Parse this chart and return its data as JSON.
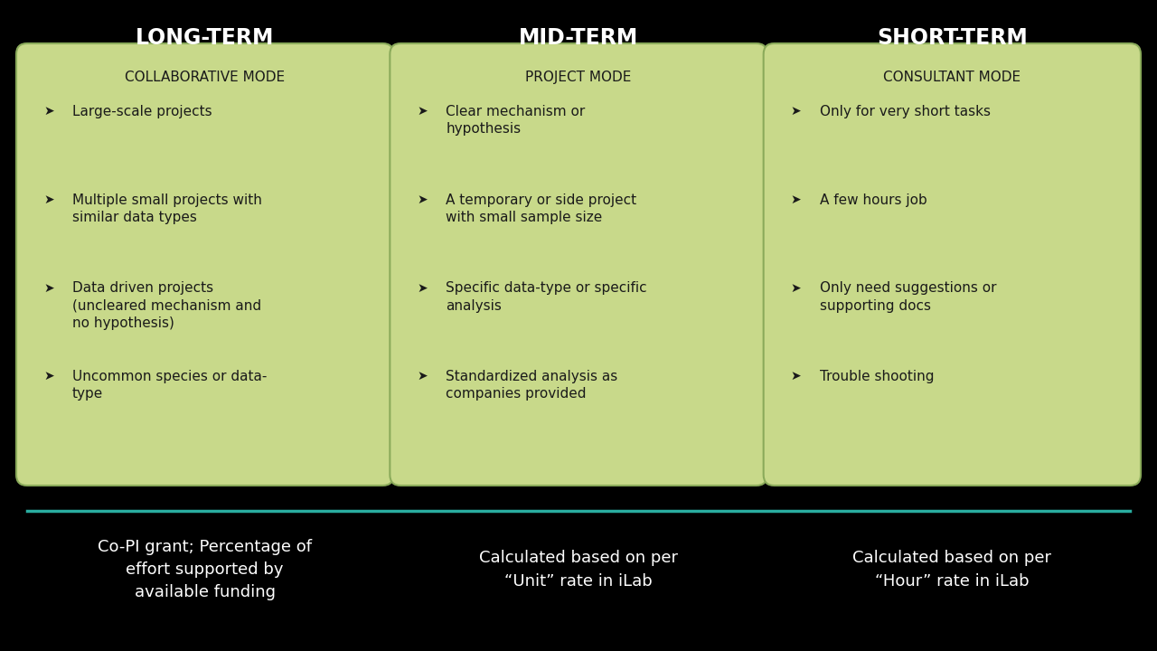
{
  "background_color": "#000000",
  "box_color": "#c8d98a",
  "box_border_color": "#8aaa5a",
  "teal_line_color": "#2aada0",
  "header_text_color": "#ffffff",
  "box_text_color": "#1a1a1a",
  "footer_text_color": "#ffffff",
  "columns": [
    {
      "header": "LONG-TERM",
      "mode": "COLLABORATIVE MODE",
      "bullets": [
        "Large-scale projects",
        "Multiple small projects with\nsimilar data types",
        "Data driven projects\n(uncleared mechanism and\nno hypothesis)",
        "Uncommon species or data-\ntype"
      ],
      "footer": "Co-PI grant; Percentage of\neffort supported by\navailable funding"
    },
    {
      "header": "MID-TERM",
      "mode": "PROJECT MODE",
      "bullets": [
        "Clear mechanism or\nhypothesis",
        "A temporary or side project\nwith small sample size",
        "Specific data-type or specific\nanalysis",
        "Standardized analysis as\ncompanies provided"
      ],
      "footer": "Calculated based on per\n“Unit” rate in iLab"
    },
    {
      "header": "SHORT-TERM",
      "mode": "CONSULTANT MODE",
      "bullets": [
        "Only for very short tasks",
        "A few hours job",
        "Only need suggestions or\nsupporting docs",
        "Trouble shooting"
      ],
      "footer": "Calculated based on per\n“Hour” rate in iLab"
    }
  ],
  "header_fontsize": 17,
  "mode_fontsize": 11,
  "bullet_fontsize": 11,
  "footer_fontsize": 13,
  "bullet_char": "➤"
}
